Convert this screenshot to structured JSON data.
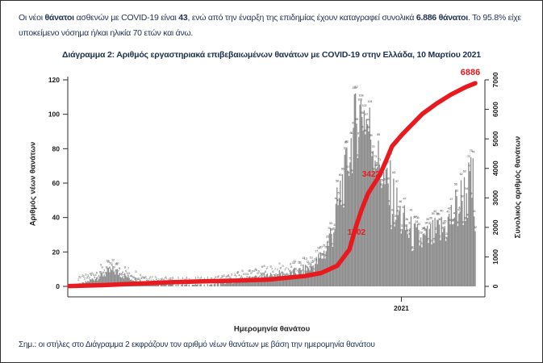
{
  "intro": {
    "segments": [
      {
        "text": "Οι νέοι ",
        "bold": false
      },
      {
        "text": "θάνατοι",
        "bold": true
      },
      {
        "text": " ασθενών με COVID-19 είναι ",
        "bold": false
      },
      {
        "text": "43",
        "bold": true
      },
      {
        "text": ", ενώ από την έναρξη της επιδημίας έχουν καταγραφεί συνολικά ",
        "bold": false
      },
      {
        "text": "6.886 θάνατοι",
        "bold": true
      },
      {
        "text": ".  Το 95.8% είχε υποκείμενο νόσημα ή/και ηλικία 70 ετών και άνω.",
        "bold": false
      }
    ]
  },
  "chart": {
    "title": "Διάγραμμα 2: Αριθμός εργαστηριακά επιβεβαιωμένων θανάτων με COVID-19 στην Ελλάδα, 10 Μαρτίου 2021"
  },
  "chart_data": {
    "type": "bar",
    "combo": "daily bars + cumulative line (dual axis)",
    "title": "Διάγραμμα 2: Αριθμός εργαστηριακά επιβεβαιωμένων θανάτων με COVID-19 στην Ελλάδα, 10 Μαρτίου 2021",
    "x_axis": {
      "label": "Ημερομηνία θανάτου",
      "range_start": "2020-03-01",
      "range_end": "2021-03-10",
      "ticks": [
        {
          "label": "2021",
          "t": 0.818
        }
      ]
    },
    "y_left": {
      "label": "Αριθμός νέων θανάτων",
      "ticks": [
        0,
        20,
        40,
        60,
        80,
        100,
        120
      ],
      "lim": [
        0,
        120
      ]
    },
    "y_right": {
      "label": "Συνολικός αριθμός θανάτων",
      "ticks": [
        0,
        1000,
        2000,
        3000,
        4000,
        5000,
        6000,
        7000
      ],
      "lim": [
        0,
        7000
      ]
    },
    "grid": false,
    "legend": "none",
    "bar_series": {
      "name": "Νέοι θάνατοι ανά ημερομηνία θανάτου",
      "color": "#8c8c8c",
      "sampling": "weekly, uniformly spaced over x range",
      "weekly_values": [
        0,
        1,
        2,
        4,
        6,
        8,
        9,
        7,
        5,
        4,
        3,
        2,
        2,
        1,
        1,
        1,
        1,
        1,
        1,
        1,
        2,
        2,
        3,
        4,
        5,
        5,
        6,
        6,
        7,
        7,
        8,
        9,
        11,
        14,
        20,
        32,
        50,
        75,
        98,
        110,
        95,
        78,
        62,
        50,
        40,
        32,
        28,
        26,
        28,
        30,
        34,
        40,
        48,
        55,
        58
      ],
      "peak_value": 120
    },
    "line_series": {
      "name": "Συνολικός αριθμός θανάτων",
      "color": "#e8191f",
      "points": [
        [
          0,
          10
        ],
        [
          0.08,
          40
        ],
        [
          0.16,
          90
        ],
        [
          0.25,
          140
        ],
        [
          0.33,
          170
        ],
        [
          0.41,
          195
        ],
        [
          0.49,
          230
        ],
        [
          0.58,
          350
        ],
        [
          0.62,
          450
        ],
        [
          0.66,
          700
        ],
        [
          0.69,
          1250
        ],
        [
          0.706,
          2020
        ],
        [
          0.72,
          2600
        ],
        [
          0.736,
          3150
        ],
        [
          0.765,
          3780
        ],
        [
          0.78,
          4250
        ],
        [
          0.795,
          4750
        ],
        [
          0.82,
          5150
        ],
        [
          0.845,
          5500
        ],
        [
          0.87,
          5850
        ],
        [
          0.905,
          6200
        ],
        [
          0.94,
          6500
        ],
        [
          0.976,
          6750
        ],
        [
          1,
          6886
        ]
      ],
      "final_value": 6886
    },
    "annotations": [
      {
        "text": "1702",
        "t": 0.7296,
        "v": 1750,
        "layer": "below-line"
      },
      {
        "text": "3422",
        "t": 0.7654,
        "v": 3720,
        "layer": "below-line"
      },
      {
        "text": "6886",
        "t": 0.988,
        "v": 7164,
        "layer": "above-line"
      }
    ]
  },
  "note": "Σημ.: οι στήλες στο Διάγραμμα 2 εκφράζουν τον αριθμό νέων θανάτων με βάση την ημερομηνία θανάτου"
}
